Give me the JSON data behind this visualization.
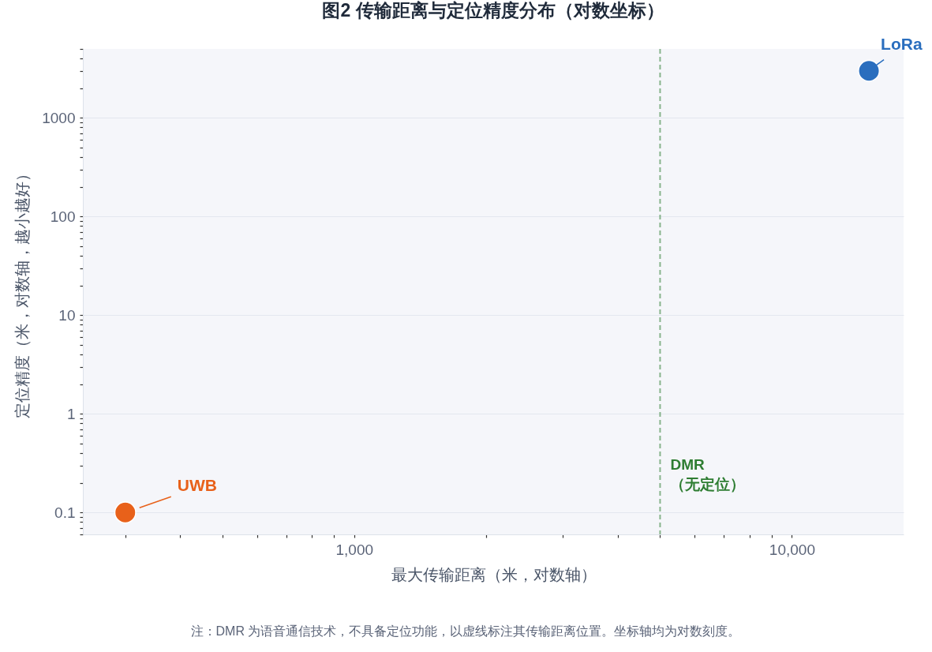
{
  "chart_data": {
    "type": "scatter",
    "title": "图2 传输距离与定位精度分布（对数坐标）",
    "xlabel": "最大传输距离（米，对数轴）",
    "ylabel": "定位精度（米，对数轴，越小越好）",
    "series": [
      {
        "name": "UWB",
        "color": "#e8611a",
        "x": [
          300
        ],
        "values": [
          0.1
        ]
      },
      {
        "name": "LoRa",
        "color": "#2a6ebe",
        "x": [
          15000
        ],
        "values": [
          3000
        ]
      }
    ],
    "log": "xy",
    "xlim": [
      240,
      18000
    ],
    "ylim": [
      0.06,
      5000
    ],
    "xticks": [
      {
        "value": 300,
        "label": null
      },
      {
        "value": 400,
        "label": null
      },
      {
        "value": 500,
        "label": null
      },
      {
        "value": 600,
        "label": null
      },
      {
        "value": 700,
        "label": null
      },
      {
        "value": 800,
        "label": null
      },
      {
        "value": 900,
        "label": null
      },
      {
        "value": 1000,
        "label": "1,000"
      },
      {
        "value": 2000,
        "label": null
      },
      {
        "value": 3000,
        "label": null
      },
      {
        "value": 4000,
        "label": null
      },
      {
        "value": 5000,
        "label": null
      },
      {
        "value": 6000,
        "label": null
      },
      {
        "value": 7000,
        "label": null
      },
      {
        "value": 8000,
        "label": null
      },
      {
        "value": 9000,
        "label": null
      },
      {
        "value": 10000,
        "label": "10,000"
      }
    ],
    "yticks": [
      {
        "value": 0.06,
        "label": null
      },
      {
        "value": 0.07,
        "label": null
      },
      {
        "value": 0.08,
        "label": null
      },
      {
        "value": 0.09,
        "label": null
      },
      0.1,
      {
        "value": 0.2,
        "label": null
      },
      {
        "value": 0.3,
        "label": null
      },
      {
        "value": 0.4,
        "label": null
      },
      {
        "value": 0.5,
        "label": null
      },
      {
        "value": 0.6,
        "label": null
      },
      {
        "value": 0.7,
        "label": null
      },
      {
        "value": 0.8,
        "label": null
      },
      {
        "value": 0.9,
        "label": null
      },
      1,
      {
        "value": 2,
        "label": null
      },
      {
        "value": 3,
        "label": null
      },
      {
        "value": 4,
        "label": null
      },
      {
        "value": 5,
        "label": null
      },
      {
        "value": 6,
        "label": null
      },
      {
        "value": 7,
        "label": null
      },
      {
        "value": 8,
        "label": null
      },
      {
        "value": 9,
        "label": null
      },
      10,
      {
        "value": 20,
        "label": null
      },
      {
        "value": 30,
        "label": null
      },
      {
        "value": 40,
        "label": null
      },
      {
        "value": 50,
        "label": null
      },
      {
        "value": 60,
        "label": null
      },
      {
        "value": 70,
        "label": null
      },
      {
        "value": 80,
        "label": null
      },
      {
        "value": 90,
        "label": null
      },
      100,
      {
        "value": 200,
        "label": null
      },
      {
        "value": 300,
        "label": null
      },
      {
        "value": 400,
        "label": null
      },
      {
        "value": 500,
        "label": null
      },
      {
        "value": 600,
        "label": null
      },
      {
        "value": 700,
        "label": null
      },
      {
        "value": 800,
        "label": null
      },
      {
        "value": 900,
        "label": null
      },
      1000,
      {
        "value": 2000,
        "label": null
      },
      {
        "value": 3000,
        "label": null
      },
      {
        "value": 4000,
        "label": null
      },
      {
        "value": 5000,
        "label": null
      }
    ],
    "grid": "y",
    "legend": false,
    "marker": "circle",
    "ref_lines": [
      {
        "axis": "x",
        "value": 5000,
        "label": "DMR\n（无定位）",
        "color": "#2e7d32",
        "line_style": "dashed"
      }
    ],
    "annotations": [
      "注：DMR 为语音通信技术，不具备定位功能，以虚线标注其传输距离位置。坐标轴均为对数刻度。"
    ]
  }
}
